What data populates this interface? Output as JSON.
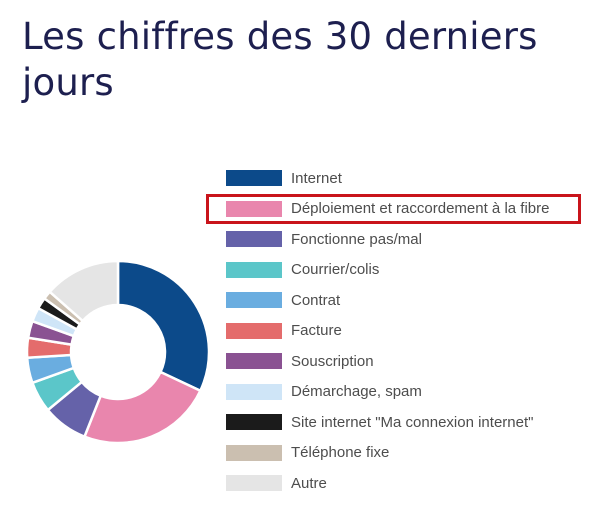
{
  "page": {
    "title": "Les chiffres des 30 derniers jours"
  },
  "highlight": {
    "color": "#c9141b",
    "category_index": 1
  },
  "chart_data": {
    "type": "pie",
    "donut": true,
    "categories": [
      "Internet",
      "Déploiement et raccordement à la fibre",
      "Fonctionne pas/mal",
      "Courrier/colis",
      "Contrat",
      "Facture",
      "Souscription",
      "Démarchage, spam",
      "Site internet \"Ma connexion internet\"",
      "Téléphone fixe",
      "Autre"
    ],
    "values": [
      32,
      24,
      8,
      5.5,
      4.5,
      3.5,
      3,
      2.5,
      2,
      1.5,
      13.5
    ],
    "colors": [
      "#0c4a8a",
      "#e986ad",
      "#6562a9",
      "#5bc6c9",
      "#6aade0",
      "#e46c6c",
      "#8a5292",
      "#cfe5f7",
      "#1b1b1b",
      "#cbbfb0",
      "#e5e5e5"
    ],
    "legend_position": "right"
  }
}
